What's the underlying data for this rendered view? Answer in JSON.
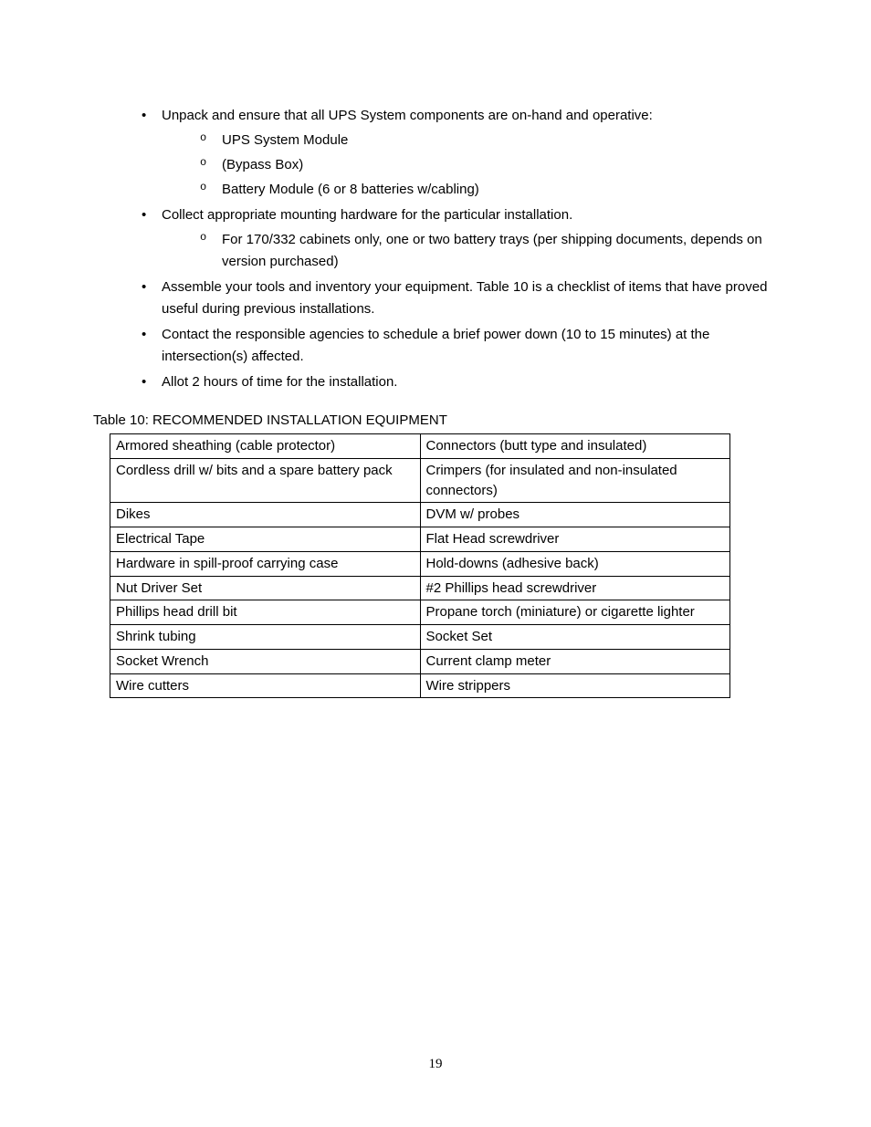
{
  "bullets": {
    "item1": {
      "text": "Unpack and ensure that all UPS System components are on-hand and operative:",
      "sub": [
        "UPS System Module",
        " (Bypass Box)",
        "Battery Module (6 or 8 batteries w/cabling)"
      ]
    },
    "item2": {
      "text": "Collect appropriate mounting hardware for the particular installation.",
      "sub": [
        "For 170/332 cabinets only, one or two battery trays (per shipping documents, depends on version purchased)"
      ]
    },
    "item3": {
      "text": "Assemble your tools and inventory your equipment.  Table 10 is a checklist of items that have proved useful during previous installations."
    },
    "item4": {
      "text": "Contact the responsible agencies to schedule a brief power down (10 to 15 minutes) at the intersection(s) affected."
    },
    "item5": {
      "text": "Allot 2 hours of time for the installation."
    }
  },
  "table": {
    "caption": "Table 10: RECOMMENDED INSTALLATION EQUIPMENT",
    "rows": [
      [
        "Armored sheathing (cable protector)",
        "Connectors (butt type and insulated)"
      ],
      [
        "Cordless drill w/ bits and a spare battery pack",
        "Crimpers (for insulated and non-insulated connectors)"
      ],
      [
        "Dikes",
        "DVM w/ probes"
      ],
      [
        "Electrical Tape",
        "Flat Head screwdriver"
      ],
      [
        "Hardware in spill-proof carrying case",
        "Hold-downs (adhesive back)"
      ],
      [
        "Nut Driver Set",
        "#2 Phillips head screwdriver"
      ],
      [
        "Phillips head drill bit",
        "Propane torch (miniature) or cigarette lighter"
      ],
      [
        "Shrink tubing",
        "Socket Set"
      ],
      [
        "Socket Wrench",
        "Current clamp meter"
      ],
      [
        "Wire cutters",
        "Wire strippers"
      ]
    ]
  },
  "pageNumber": "19"
}
